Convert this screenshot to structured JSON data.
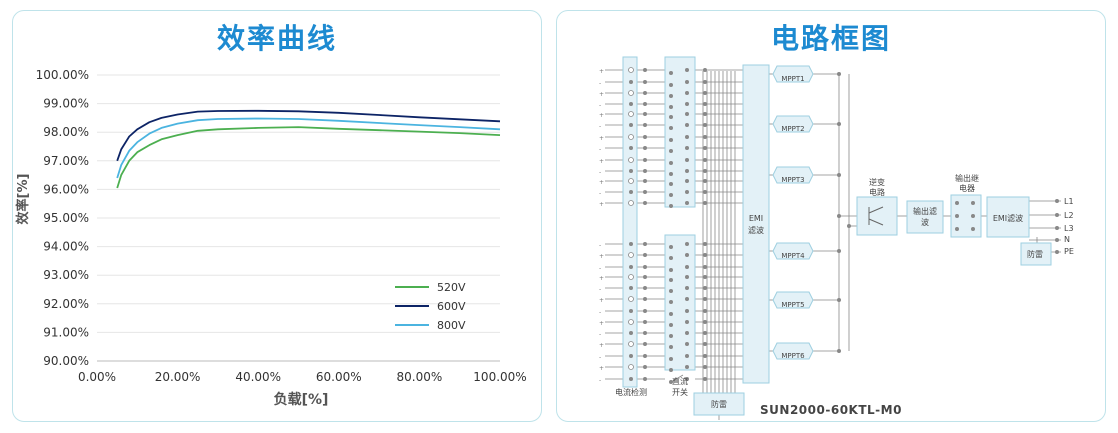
{
  "left_panel": {
    "title": "效率曲线"
  },
  "right_panel": {
    "title": "电路框图",
    "caption": "SUN2000-60KTL-M0",
    "blocks": {
      "current_detect": "电流检测",
      "dc_switch_1": "直流",
      "dc_switch_2": "开关",
      "surge": "防雷",
      "emi_1": "EMI",
      "emi_2": "滤波",
      "mppt": [
        "MPPT1",
        "MPPT2",
        "MPPT3",
        "MPPT4",
        "MPPT5",
        "MPPT6"
      ],
      "inverter_1": "逆变",
      "inverter_2": "电路",
      "out_filter_1": "输出滤",
      "out_filter_2": "波",
      "relay_1": "输出继",
      "relay_2": "电器",
      "emi_out": "EMI滤波",
      "surge_out": "防雷",
      "outputs": [
        "L1",
        "L2",
        "L3",
        "N",
        "PE"
      ]
    }
  },
  "chart_data": {
    "type": "line",
    "title": "",
    "xlabel": "负载[%]",
    "ylabel": "效率[%]",
    "xlim": [
      0,
      100
    ],
    "ylim": [
      90,
      100
    ],
    "x_ticks": [
      "0.00%",
      "20.00%",
      "40.00%",
      "60.00%",
      "80.00%",
      "100.00%"
    ],
    "y_ticks": [
      "90.00%",
      "91.00%",
      "92.00%",
      "93.00%",
      "94.00%",
      "95.00%",
      "96.00%",
      "97.00%",
      "98.00%",
      "99.00%",
      "100.00%"
    ],
    "legend_position": "bottom-right",
    "grid": "horizontal",
    "series": [
      {
        "name": "520V",
        "color": "#4caf50",
        "x": [
          5,
          6,
          8,
          10,
          13,
          16,
          20,
          25,
          30,
          40,
          50,
          60,
          70,
          80,
          90,
          100
        ],
        "y": [
          96.05,
          96.5,
          97.0,
          97.3,
          97.55,
          97.75,
          97.9,
          98.05,
          98.1,
          98.15,
          98.18,
          98.12,
          98.07,
          98.02,
          97.97,
          97.9
        ]
      },
      {
        "name": "600V",
        "color": "#0d2466",
        "x": [
          5,
          6,
          8,
          10,
          13,
          16,
          20,
          25,
          30,
          40,
          50,
          60,
          70,
          80,
          90,
          100
        ],
        "y": [
          97.0,
          97.4,
          97.85,
          98.1,
          98.35,
          98.5,
          98.62,
          98.72,
          98.74,
          98.75,
          98.73,
          98.68,
          98.6,
          98.52,
          98.45,
          98.38
        ]
      },
      {
        "name": "800V",
        "color": "#4bb4e0",
        "x": [
          5,
          6,
          8,
          10,
          13,
          16,
          20,
          25,
          30,
          40,
          50,
          60,
          70,
          80,
          90,
          100
        ],
        "y": [
          96.4,
          96.85,
          97.35,
          97.65,
          97.95,
          98.15,
          98.3,
          98.42,
          98.46,
          98.48,
          98.46,
          98.4,
          98.32,
          98.25,
          98.18,
          98.1
        ]
      }
    ]
  }
}
